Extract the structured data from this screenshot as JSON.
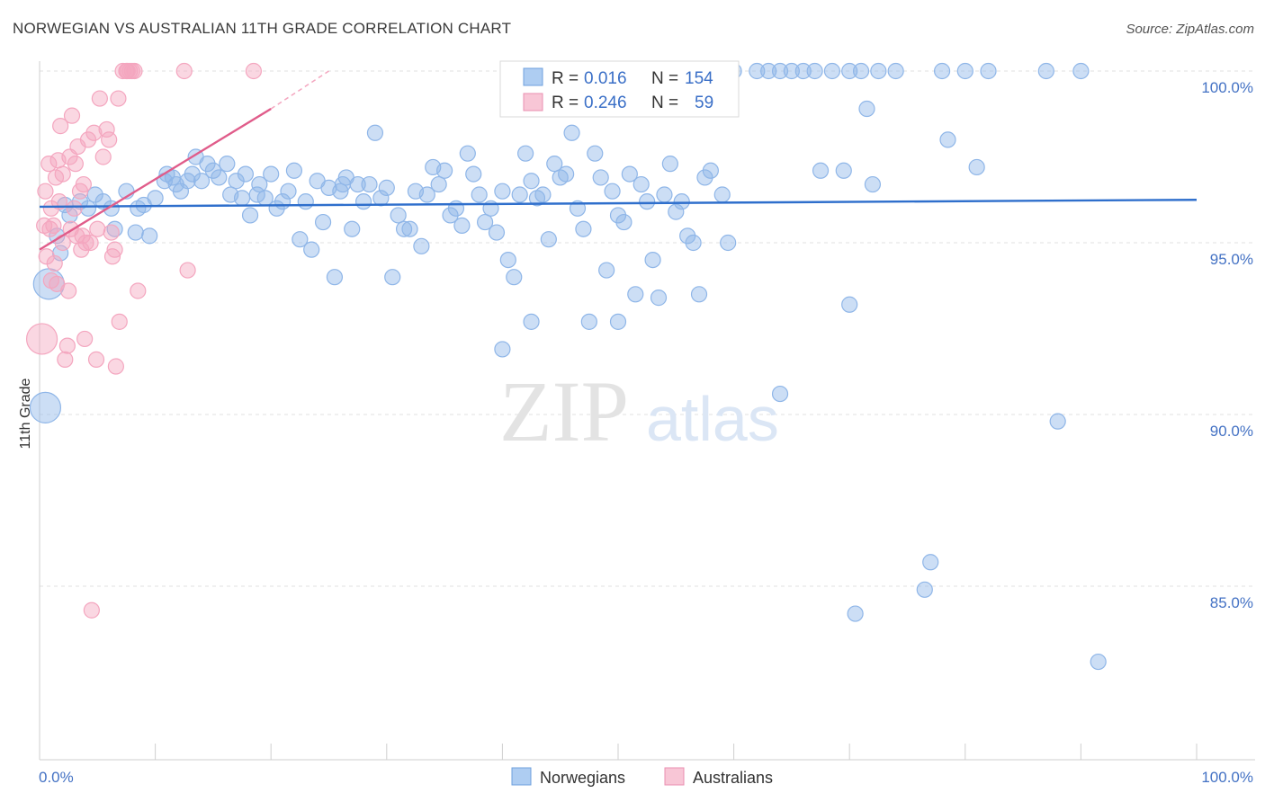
{
  "chart_data": {
    "type": "scatter",
    "title": "NORWEGIAN VS AUSTRALIAN 11TH GRADE CORRELATION CHART",
    "source": "Source: ZipAtlas.com",
    "xlabel": "",
    "ylabel": "11th Grade",
    "xlim": [
      0,
      100
    ],
    "ylim": [
      80,
      100.5
    ],
    "x_tick_labels": [
      "0.0%",
      "100.0%"
    ],
    "y_ticks": [
      {
        "value": 100,
        "label": "100.0%"
      },
      {
        "value": 95,
        "label": "95.0%"
      },
      {
        "value": 90,
        "label": "90.0%"
      },
      {
        "value": 85,
        "label": "85.0%"
      }
    ],
    "watermark": {
      "zip": "ZIP",
      "atlas": "atlas"
    },
    "legend": {
      "r_label": "R =",
      "n_label": "N =",
      "entries": [
        {
          "r": "0.016",
          "n": "154"
        },
        {
          "r": "0.246",
          "n": "59"
        }
      ]
    },
    "series": [
      {
        "name": "Norwegians",
        "color": "#8fb6e8",
        "line_color": "#2f6fcc",
        "trend": {
          "x0": 0,
          "y0": 96.05,
          "x1": 100,
          "y1": 96.25
        },
        "points": [
          [
            0.8,
            93.8
          ],
          [
            0.5,
            90.2
          ],
          [
            1.5,
            95.2
          ],
          [
            1.8,
            94.7
          ],
          [
            2.2,
            96.1
          ],
          [
            2.6,
            95.8
          ],
          [
            3.5,
            96.2
          ],
          [
            4.2,
            96.0
          ],
          [
            4.8,
            96.4
          ],
          [
            5.5,
            96.2
          ],
          [
            6.5,
            95.4
          ],
          [
            6.2,
            96.0
          ],
          [
            7.5,
            96.5
          ],
          [
            8.3,
            95.3
          ],
          [
            8.5,
            96.0
          ],
          [
            9.0,
            96.1
          ],
          [
            9.5,
            95.2
          ],
          [
            10.0,
            96.3
          ],
          [
            10.8,
            96.8
          ],
          [
            11.0,
            97.0
          ],
          [
            11.5,
            96.9
          ],
          [
            11.8,
            96.7
          ],
          [
            12.2,
            96.5
          ],
          [
            12.8,
            96.8
          ],
          [
            13.2,
            97.0
          ],
          [
            13.5,
            97.5
          ],
          [
            14.0,
            96.8
          ],
          [
            14.5,
            97.3
          ],
          [
            15.0,
            97.1
          ],
          [
            15.5,
            96.9
          ],
          [
            16.2,
            97.3
          ],
          [
            16.5,
            96.4
          ],
          [
            17.0,
            96.8
          ],
          [
            17.5,
            96.3
          ],
          [
            17.8,
            97.0
          ],
          [
            18.2,
            95.8
          ],
          [
            18.8,
            96.4
          ],
          [
            19.0,
            96.7
          ],
          [
            19.5,
            96.3
          ],
          [
            20.0,
            97.0
          ],
          [
            20.5,
            96.0
          ],
          [
            21.0,
            96.2
          ],
          [
            21.5,
            96.5
          ],
          [
            22.0,
            97.1
          ],
          [
            22.5,
            95.1
          ],
          [
            23.0,
            96.2
          ],
          [
            23.5,
            94.8
          ],
          [
            24.0,
            96.8
          ],
          [
            24.5,
            95.6
          ],
          [
            25.0,
            96.6
          ],
          [
            25.5,
            94.0
          ],
          [
            26.0,
            96.5
          ],
          [
            26.2,
            96.7
          ],
          [
            26.5,
            96.9
          ],
          [
            27.0,
            95.4
          ],
          [
            27.5,
            96.7
          ],
          [
            28.0,
            96.2
          ],
          [
            28.5,
            96.7
          ],
          [
            29.0,
            98.2
          ],
          [
            29.5,
            96.3
          ],
          [
            30.0,
            96.6
          ],
          [
            30.5,
            94.0
          ],
          [
            31.0,
            95.8
          ],
          [
            31.5,
            95.4
          ],
          [
            32.0,
            95.4
          ],
          [
            32.5,
            96.5
          ],
          [
            33.0,
            94.9
          ],
          [
            33.5,
            96.4
          ],
          [
            34.0,
            97.2
          ],
          [
            34.5,
            96.7
          ],
          [
            35.0,
            97.1
          ],
          [
            35.5,
            95.8
          ],
          [
            36.0,
            96.0
          ],
          [
            36.5,
            95.5
          ],
          [
            37.0,
            97.6
          ],
          [
            37.5,
            97.0
          ],
          [
            38.0,
            96.4
          ],
          [
            38.5,
            95.6
          ],
          [
            39.0,
            96.0
          ],
          [
            39.5,
            95.3
          ],
          [
            40.0,
            96.5
          ],
          [
            40.5,
            94.5
          ],
          [
            41.0,
            94.0
          ],
          [
            41.5,
            96.4
          ],
          [
            42.0,
            97.6
          ],
          [
            42.5,
            96.8
          ],
          [
            43.0,
            96.3
          ],
          [
            43.5,
            96.4
          ],
          [
            44.0,
            95.1
          ],
          [
            44.5,
            97.3
          ],
          [
            45.0,
            96.9
          ],
          [
            45.5,
            97.0
          ],
          [
            46.0,
            98.2
          ],
          [
            46.5,
            96.0
          ],
          [
            47.0,
            95.4
          ],
          [
            47.5,
            92.7
          ],
          [
            48.0,
            97.6
          ],
          [
            48.5,
            96.9
          ],
          [
            49.0,
            94.2
          ],
          [
            49.5,
            96.5
          ],
          [
            50.0,
            95.8
          ],
          [
            50.5,
            95.6
          ],
          [
            51.0,
            97.0
          ],
          [
            51.5,
            93.5
          ],
          [
            52.0,
            96.7
          ],
          [
            52.5,
            96.2
          ],
          [
            53.0,
            94.5
          ],
          [
            53.5,
            93.4
          ],
          [
            54.0,
            96.4
          ],
          [
            54.5,
            97.3
          ],
          [
            55.0,
            95.9
          ],
          [
            55.5,
            96.2
          ],
          [
            56.0,
            95.2
          ],
          [
            56.5,
            95.0
          ],
          [
            57.0,
            93.5
          ],
          [
            57.5,
            96.9
          ],
          [
            58.0,
            97.1
          ],
          [
            59.0,
            96.4
          ],
          [
            59.5,
            95.0
          ],
          [
            60.0,
            100.0
          ],
          [
            62.0,
            100.0
          ],
          [
            63.0,
            100.0
          ],
          [
            64.0,
            100.0
          ],
          [
            65.0,
            100.0
          ],
          [
            66.0,
            100.0
          ],
          [
            67.0,
            100.0
          ],
          [
            68.5,
            100.0
          ],
          [
            70.0,
            100.0
          ],
          [
            71.0,
            100.0
          ],
          [
            72.5,
            100.0
          ],
          [
            74.0,
            100.0
          ],
          [
            78.0,
            100.0
          ],
          [
            80.0,
            100.0
          ],
          [
            82.0,
            100.0
          ],
          [
            87.0,
            100.0
          ],
          [
            90.0,
            100.0
          ],
          [
            67.5,
            97.1
          ],
          [
            69.5,
            97.1
          ],
          [
            70.0,
            93.2
          ],
          [
            71.5,
            98.9
          ],
          [
            72.0,
            96.7
          ],
          [
            78.5,
            98.0
          ],
          [
            81.0,
            97.2
          ],
          [
            64.0,
            90.6
          ],
          [
            88.0,
            89.8
          ],
          [
            77.0,
            85.7
          ],
          [
            76.5,
            84.9
          ],
          [
            70.5,
            84.2
          ],
          [
            91.5,
            82.8
          ],
          [
            42.5,
            92.7
          ],
          [
            40.0,
            91.9
          ],
          [
            50.0,
            92.7
          ],
          [
            56.5,
            99.0
          ]
        ]
      },
      {
        "name": "Australians",
        "color": "#f4a6bf",
        "line_color": "#e05c8a",
        "trend": {
          "x0": 0,
          "y0": 94.8,
          "x1": 20,
          "y1": 98.9
        },
        "trend_dashed": {
          "x0": 20,
          "y0": 98.9,
          "x1": 25,
          "y1": 100.0
        },
        "points": [
          [
            0.2,
            92.2
          ],
          [
            0.4,
            95.5
          ],
          [
            0.5,
            96.5
          ],
          [
            0.6,
            94.6
          ],
          [
            0.8,
            97.3
          ],
          [
            1.0,
            96.0
          ],
          [
            1.2,
            95.5
          ],
          [
            1.3,
            94.4
          ],
          [
            1.5,
            93.8
          ],
          [
            1.6,
            97.4
          ],
          [
            1.8,
            98.4
          ],
          [
            2.0,
            97.0
          ],
          [
            2.2,
            91.6
          ],
          [
            2.4,
            92.0
          ],
          [
            2.5,
            93.6
          ],
          [
            2.6,
            97.5
          ],
          [
            2.8,
            98.7
          ],
          [
            3.0,
            96.0
          ],
          [
            3.2,
            95.2
          ],
          [
            3.3,
            97.8
          ],
          [
            3.5,
            96.5
          ],
          [
            3.6,
            94.8
          ],
          [
            3.8,
            96.7
          ],
          [
            3.9,
            92.2
          ],
          [
            4.0,
            95.0
          ],
          [
            4.2,
            98.0
          ],
          [
            4.4,
            95.0
          ],
          [
            4.5,
            84.3
          ],
          [
            4.7,
            98.2
          ],
          [
            4.9,
            91.6
          ],
          [
            5.0,
            95.4
          ],
          [
            5.2,
            99.2
          ],
          [
            5.5,
            97.5
          ],
          [
            5.8,
            98.3
          ],
          [
            6.0,
            98.0
          ],
          [
            6.2,
            95.3
          ],
          [
            6.3,
            94.6
          ],
          [
            6.5,
            94.8
          ],
          [
            6.6,
            91.4
          ],
          [
            6.8,
            99.2
          ],
          [
            6.9,
            92.7
          ],
          [
            7.2,
            100.0
          ],
          [
            7.5,
            100.0
          ],
          [
            7.6,
            100.0
          ],
          [
            7.8,
            100.0
          ],
          [
            8.0,
            100.0
          ],
          [
            8.2,
            100.0
          ],
          [
            8.5,
            93.6
          ],
          [
            12.5,
            100.0
          ],
          [
            12.8,
            94.2
          ],
          [
            18.5,
            100.0
          ],
          [
            1.0,
            93.9
          ],
          [
            2.0,
            95.0
          ],
          [
            1.4,
            96.9
          ],
          [
            2.7,
            95.4
          ],
          [
            3.1,
            97.3
          ],
          [
            0.9,
            95.4
          ],
          [
            1.7,
            96.2
          ],
          [
            3.7,
            95.2
          ]
        ]
      }
    ]
  },
  "bottom_legend": [
    {
      "label": "Norwegians",
      "color": "#aecdf2",
      "border": "#6fa0dd"
    },
    {
      "label": "Australians",
      "color": "#f8c6d6",
      "border": "#ea8fb0"
    }
  ],
  "legend_colors": [
    {
      "fill": "#aecdf2",
      "border": "#6fa0dd"
    },
    {
      "fill": "#f8c6d6",
      "border": "#ea8fb0"
    }
  ]
}
